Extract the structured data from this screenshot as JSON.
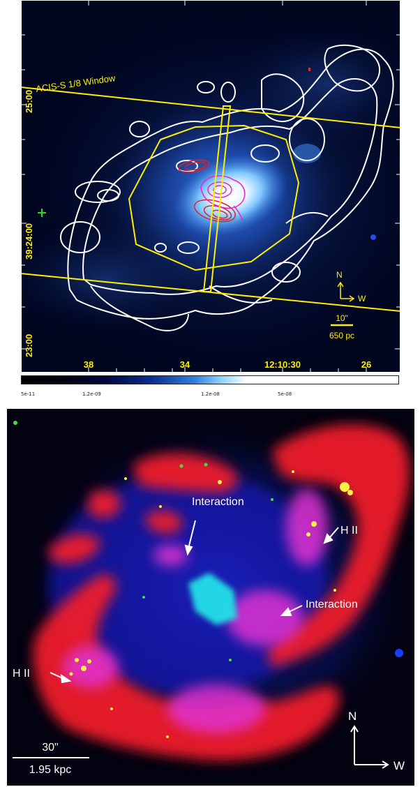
{
  "top_panel": {
    "window_label": "ACIS-S 1/8 Window",
    "dec_ticks": [
      "25:00",
      "39:24:00",
      "23:00"
    ],
    "ra_ticks": [
      "38",
      "34",
      "12:10:30",
      "26"
    ],
    "compass": {
      "north": "N",
      "west": "W"
    },
    "scale_bar": {
      "angular": "10\"",
      "physical": "650 pc"
    }
  },
  "colorbar": {
    "tick_labels": [
      "5e-11",
      "1.2e-09",
      "1.2e-08",
      "5e-08"
    ]
  },
  "bottom_panel": {
    "annotations": [
      "Interaction",
      "H II",
      "Interaction",
      "H II"
    ],
    "compass": {
      "north": "N",
      "west": "W"
    },
    "scale_bar": {
      "angular": "30\"",
      "physical": "1.95 kpc"
    }
  },
  "colors": {
    "overlay_yellow": "#ffee00",
    "contour_white": "#ffffff",
    "contour_red": "#dd2222",
    "contour_magenta": "#ee22cc",
    "marker_green": "#22dd22"
  }
}
